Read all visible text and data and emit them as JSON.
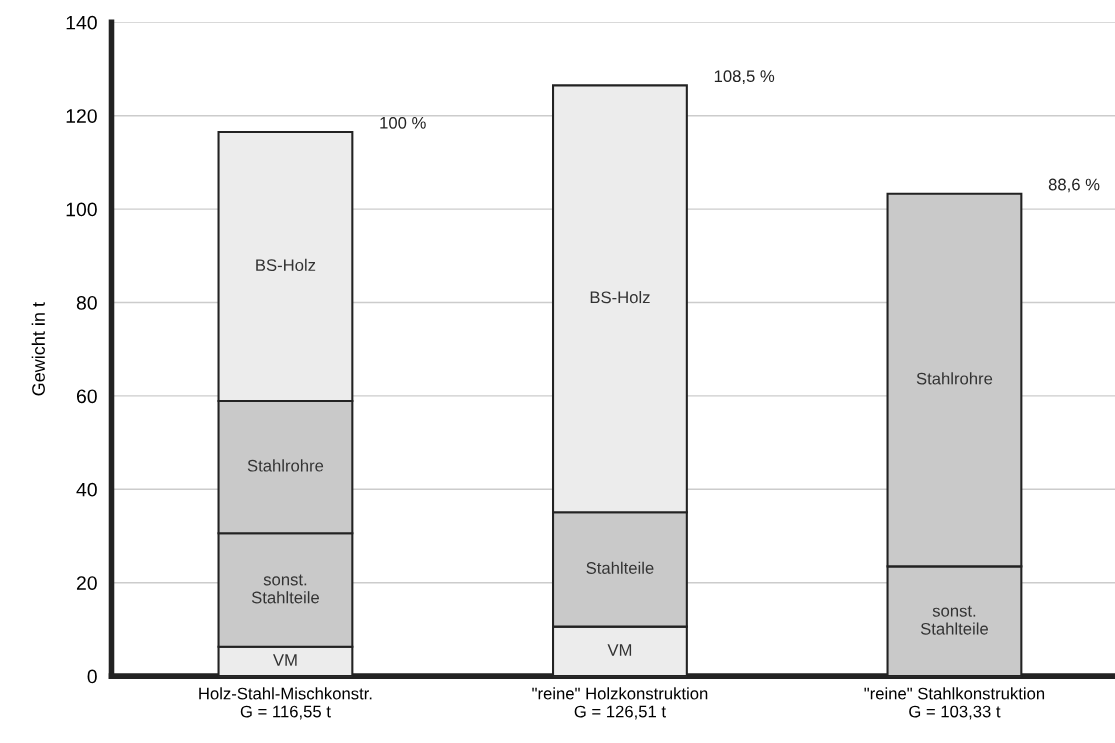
{
  "chart_data": {
    "type": "bar",
    "stacked": true,
    "ylabel": "Gewicht in t",
    "categories": [
      "Holz-Stahl-Mischkonstr.\nG = 116,55 t",
      "\"reine\" Holzkonstruktion\nG = 126,51 t",
      "\"reine\" Stahlkonstruktion\nG = 103,33 t"
    ],
    "series": [
      {
        "name": "VM",
        "color": "#ececec",
        "values": [
          6.3,
          10.6,
          null
        ]
      },
      {
        "name": "sonst.\nStahlteile",
        "color": "#c9c9c9",
        "values": [
          24.3,
          null,
          23.5
        ]
      },
      {
        "name": "Stahlteile",
        "color": "#c9c9c9",
        "values": [
          null,
          24.5,
          null
        ]
      },
      {
        "name": "Stahlrohre",
        "color": "#c9c9c9",
        "values": [
          28.3,
          null,
          79.8
        ]
      },
      {
        "name": "BS-Holz",
        "color": "#ececec",
        "values": [
          57.6,
          91.4,
          null
        ]
      }
    ],
    "annotations": [
      "100 %",
      "108,5 %",
      "88,6 %"
    ],
    "ylim": [
      0,
      140
    ],
    "yticks": [
      0,
      20,
      40,
      60,
      80,
      100,
      120,
      140
    ],
    "grid": "y",
    "legend": false
  }
}
